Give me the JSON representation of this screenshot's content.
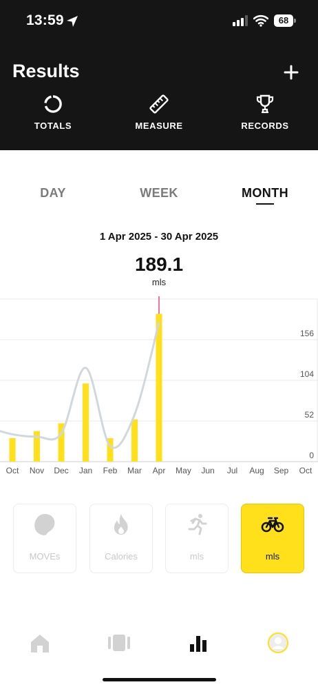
{
  "status_bar": {
    "time": "13:59",
    "battery": "68",
    "icons": [
      "location-arrow-icon",
      "signal-icon",
      "wifi-icon",
      "battery-icon"
    ]
  },
  "header": {
    "title": "Results",
    "add_icon": "plus-icon",
    "tabs": [
      {
        "label": "TOTALS",
        "icon": "ring-chart-icon"
      },
      {
        "label": "MEASURE",
        "icon": "ruler-icon"
      },
      {
        "label": "RECORDS",
        "icon": "trophy-icon"
      }
    ]
  },
  "periods": {
    "day": "DAY",
    "week": "WEEK",
    "month": "MONTH",
    "selected": "MONTH"
  },
  "summary": {
    "date_range": "1 Apr 2025 - 30 Apr 2025",
    "value": "189.1",
    "unit": "mls"
  },
  "chart_data": {
    "type": "bar",
    "categories": [
      "Oct",
      "Nov",
      "Dec",
      "Jan",
      "Feb",
      "Mar",
      "Apr",
      "May",
      "Jun",
      "Jul",
      "Aug",
      "Sep",
      "Oct"
    ],
    "values": [
      30,
      39,
      49,
      100,
      30,
      54,
      189.1,
      null,
      null,
      null,
      null,
      null,
      null
    ],
    "trend_line": [
      35,
      32,
      36,
      120,
      20,
      60,
      178
    ],
    "y_ticks": [
      0,
      52,
      104,
      156
    ],
    "ylim": [
      0,
      208
    ],
    "selected_category": "Apr",
    "grid": true,
    "colors": {
      "bar": "#FFE01B",
      "trend": "#D0D8DC",
      "marker": "#E8457A",
      "grid": "#E9E9E9"
    }
  },
  "activities": [
    {
      "label": "MOVEs",
      "icon": "moves-icon",
      "selected": false
    },
    {
      "label": "Calories",
      "icon": "flame-icon",
      "selected": false
    },
    {
      "label": "mls",
      "icon": "running-icon",
      "selected": false
    },
    {
      "label": "mls",
      "icon": "bicycle-icon",
      "selected": true
    }
  ],
  "bottom_nav": [
    {
      "name": "home",
      "icon": "home-icon"
    },
    {
      "name": "device",
      "icon": "device-icon"
    },
    {
      "name": "results",
      "icon": "bar-chart-icon",
      "selected": true
    },
    {
      "name": "profile",
      "icon": "avatar-icon"
    }
  ],
  "colors": {
    "header_bg": "#151515",
    "accent": "#FFE01B"
  }
}
